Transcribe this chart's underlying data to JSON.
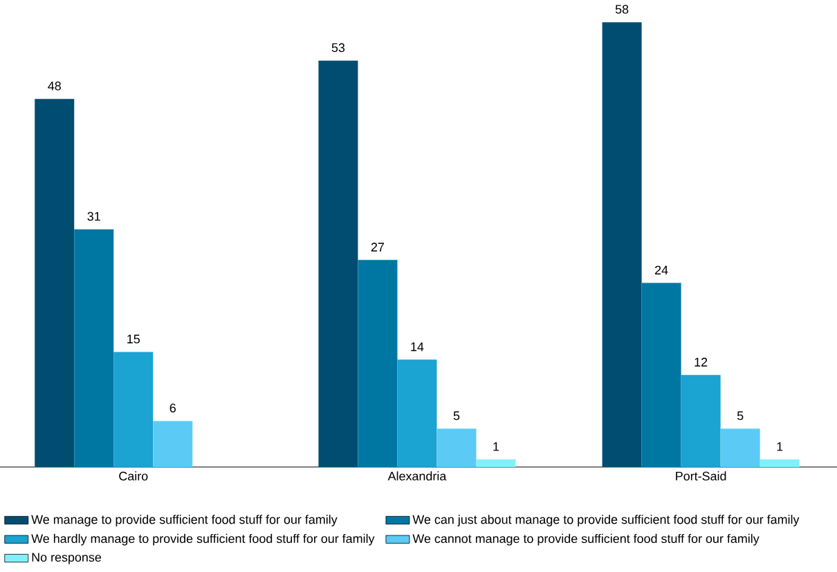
{
  "chart_data": {
    "type": "bar",
    "categories": [
      "Cairo",
      "Alexandria",
      "Port-Said"
    ],
    "series": [
      {
        "name": "We manage to provide sufficient food stuff for our family",
        "color": "#004d71",
        "values": [
          48,
          53,
          58
        ]
      },
      {
        "name": "We can just about manage to provide sufficient food stuff for our family",
        "color": "#0077a3",
        "values": [
          31,
          27,
          24
        ]
      },
      {
        "name": "We hardly manage to provide sufficient food stuff for our family",
        "color": "#1ba3d1",
        "values": [
          15,
          14,
          12
        ]
      },
      {
        "name": "We cannot manage to provide sufficient food stuff for our family",
        "color": "#5bcbf5",
        "values": [
          6,
          5,
          5
        ]
      },
      {
        "name": "No response",
        "color": "#82f0fc",
        "values": [
          null,
          1,
          1
        ]
      }
    ],
    "data_labels": true,
    "legend": "bottom"
  }
}
